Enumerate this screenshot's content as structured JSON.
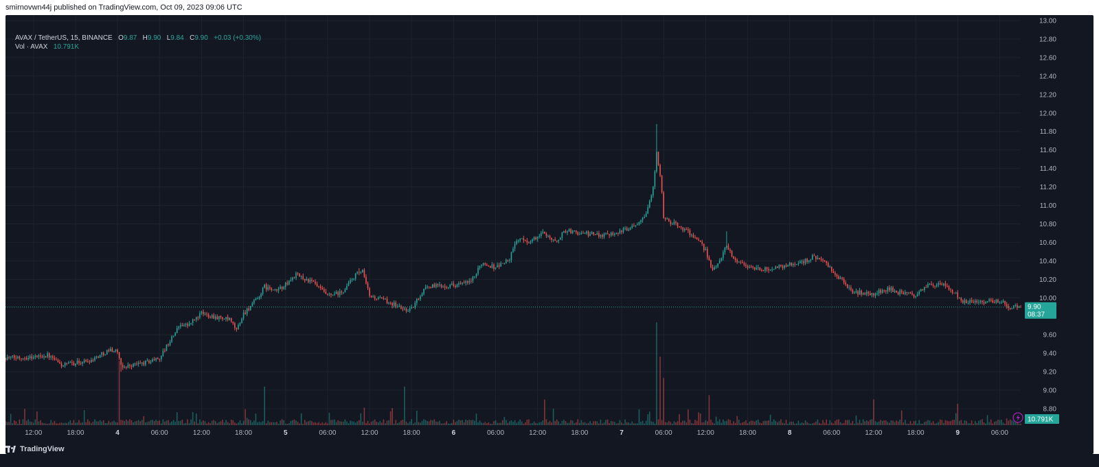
{
  "header": {
    "published_line": "smirnovwn44j published on TradingView.com, Oct 09, 2023 09:06 UTC"
  },
  "legend": {
    "symbol": "AVAX / TetherUS, 15, BINANCE",
    "o_label": "O",
    "o_value": "9.87",
    "h_label": "H",
    "h_value": "9.90",
    "l_label": "L",
    "l_value": "9.84",
    "c_label": "C",
    "c_value": "9.90",
    "change": "+0.03 (+0.30%)",
    "vol_label": "Vol · AVAX",
    "vol_value": "10.791K"
  },
  "price_tag": {
    "price": "9.90",
    "countdown": "08:37"
  },
  "volume_tag": {
    "value": "10.791K"
  },
  "footer": {
    "brand": "TradingView"
  },
  "colors": {
    "up": "#26a69a",
    "down": "#ef5350",
    "background": "#131722",
    "text": "#b2b5be",
    "grid": "#1e222d"
  },
  "icons": {
    "alert": "lightning-icon",
    "logo": "tradingview-logo-icon"
  },
  "chart_data": {
    "type": "candlestick",
    "title": "AVAX / TetherUS, 15, BINANCE",
    "interval": "15",
    "y_axis": {
      "ticks": [
        "13.00",
        "12.80",
        "12.60",
        "12.40",
        "12.20",
        "12.00",
        "11.80",
        "11.60",
        "11.40",
        "11.20",
        "11.00",
        "10.80",
        "10.60",
        "10.40",
        "10.20",
        "10.00",
        "9.60",
        "9.40",
        "9.20",
        "9.00",
        "8.80"
      ],
      "range": [
        8.8,
        13.0
      ]
    },
    "x_axis": {
      "ticks": [
        "12:00",
        "18:00",
        "4",
        "06:00",
        "12:00",
        "18:00",
        "5",
        "06:00",
        "12:00",
        "18:00",
        "6",
        "06:00",
        "12:00",
        "18:00",
        "7",
        "06:00",
        "12:00",
        "18:00",
        "8",
        "06:00",
        "12:00",
        "18:00",
        "9",
        "06:00"
      ],
      "bold_ticks": [
        "4",
        "5",
        "6",
        "7",
        "8",
        "9"
      ],
      "start": "2023-10-03 08:00",
      "end": "2023-10-09 09:00"
    },
    "last_price": 9.9,
    "price_anchors": [
      [
        "2023-10-03 08:00",
        9.35
      ],
      [
        "2023-10-03 12:00",
        9.36
      ],
      [
        "2023-10-03 14:00",
        9.38
      ],
      [
        "2023-10-03 16:00",
        9.27
      ],
      [
        "2023-10-03 20:00",
        9.32
      ],
      [
        "2023-10-03 23:00",
        9.44
      ],
      [
        "2023-10-04 00:00",
        9.42
      ],
      [
        "2023-10-04 00:30",
        9.25
      ],
      [
        "2023-10-04 04:00",
        9.3
      ],
      [
        "2023-10-04 06:00",
        9.35
      ],
      [
        "2023-10-04 09:00",
        9.72
      ],
      [
        "2023-10-04 10:00",
        9.7
      ],
      [
        "2023-10-04 12:00",
        9.83
      ],
      [
        "2023-10-04 16:00",
        9.76
      ],
      [
        "2023-10-04 17:00",
        9.65
      ],
      [
        "2023-10-04 18:00",
        9.83
      ],
      [
        "2023-10-04 20:00",
        9.99
      ],
      [
        "2023-10-04 21:00",
        10.12
      ],
      [
        "2023-10-04 22:30",
        10.07
      ],
      [
        "2023-10-05 00:00",
        10.14
      ],
      [
        "2023-10-05 01:30",
        10.25
      ],
      [
        "2023-10-05 04:00",
        10.16
      ],
      [
        "2023-10-05 06:00",
        10.02
      ],
      [
        "2023-10-05 08:00",
        10.05
      ],
      [
        "2023-10-05 10:00",
        10.25
      ],
      [
        "2023-10-05 11:00",
        10.28
      ],
      [
        "2023-10-05 12:00",
        10.02
      ],
      [
        "2023-10-05 15:00",
        9.95
      ],
      [
        "2023-10-05 17:00",
        9.87
      ],
      [
        "2023-10-05 18:00",
        9.88
      ],
      [
        "2023-10-05 20:00",
        10.12
      ],
      [
        "2023-10-06 00:00",
        10.14
      ],
      [
        "2023-10-06 02:00",
        10.16
      ],
      [
        "2023-10-06 03:00",
        10.22
      ],
      [
        "2023-10-06 04:00",
        10.38
      ],
      [
        "2023-10-06 06:00",
        10.33
      ],
      [
        "2023-10-06 08:00",
        10.42
      ],
      [
        "2023-10-06 09:00",
        10.63
      ],
      [
        "2023-10-06 11:00",
        10.61
      ],
      [
        "2023-10-06 13:00",
        10.71
      ],
      [
        "2023-10-06 14:30",
        10.6
      ],
      [
        "2023-10-06 16:00",
        10.73
      ],
      [
        "2023-10-06 18:00",
        10.7
      ],
      [
        "2023-10-06 21:00",
        10.68
      ],
      [
        "2023-10-07 00:00",
        10.72
      ],
      [
        "2023-10-07 02:00",
        10.8
      ],
      [
        "2023-10-07 03:30",
        10.92
      ],
      [
        "2023-10-07 04:30",
        11.18
      ],
      [
        "2023-10-07 05:00",
        11.6
      ],
      [
        "2023-10-07 05:45",
        11.15
      ],
      [
        "2023-10-07 06:00",
        10.85
      ],
      [
        "2023-10-07 08:00",
        10.78
      ],
      [
        "2023-10-07 09:30",
        10.72
      ],
      [
        "2023-10-07 11:00",
        10.6
      ],
      [
        "2023-10-07 12:00",
        10.52
      ],
      [
        "2023-10-07 13:00",
        10.28
      ],
      [
        "2023-10-07 14:30",
        10.48
      ],
      [
        "2023-10-07 15:00",
        10.58
      ],
      [
        "2023-10-07 16:00",
        10.42
      ],
      [
        "2023-10-07 18:00",
        10.34
      ],
      [
        "2023-10-07 20:00",
        10.3
      ],
      [
        "2023-10-08 00:00",
        10.36
      ],
      [
        "2023-10-08 02:00",
        10.39
      ],
      [
        "2023-10-08 03:30",
        10.45
      ],
      [
        "2023-10-08 05:00",
        10.38
      ],
      [
        "2023-10-08 06:30",
        10.25
      ],
      [
        "2023-10-08 08:00",
        10.15
      ],
      [
        "2023-10-08 09:00",
        10.06
      ],
      [
        "2023-10-08 12:00",
        10.04
      ],
      [
        "2023-10-08 14:00",
        10.1
      ],
      [
        "2023-10-08 16:00",
        10.05
      ],
      [
        "2023-10-08 18:00",
        10.03
      ],
      [
        "2023-10-08 20:00",
        10.15
      ],
      [
        "2023-10-08 22:00",
        10.13
      ],
      [
        "2023-10-08 23:30",
        10.06
      ],
      [
        "2023-10-09 00:30",
        9.95
      ],
      [
        "2023-10-09 02:00",
        9.97
      ],
      [
        "2023-10-09 04:00",
        9.96
      ],
      [
        "2023-10-09 06:00",
        9.97
      ],
      [
        "2023-10-09 07:30",
        9.9
      ],
      [
        "2023-10-09 09:00",
        9.9
      ]
    ],
    "volume_spikes": [
      [
        "2023-10-04 00:15",
        7.5
      ],
      [
        "2023-10-04 21:00",
        4.5
      ],
      [
        "2023-10-05 17:00",
        4.5
      ],
      [
        "2023-10-06 13:00",
        3.0
      ],
      [
        "2023-10-07 05:00",
        12.0
      ],
      [
        "2023-10-07 05:30",
        8.0
      ],
      [
        "2023-10-07 06:00",
        5.5
      ],
      [
        "2023-10-07 12:30",
        3.5
      ],
      [
        "2023-10-08 12:00",
        3.0
      ],
      [
        "2023-10-09 00:00",
        2.5
      ]
    ],
    "last_volume": "10.791K",
    "grid": true,
    "legend_position": "top-left"
  }
}
